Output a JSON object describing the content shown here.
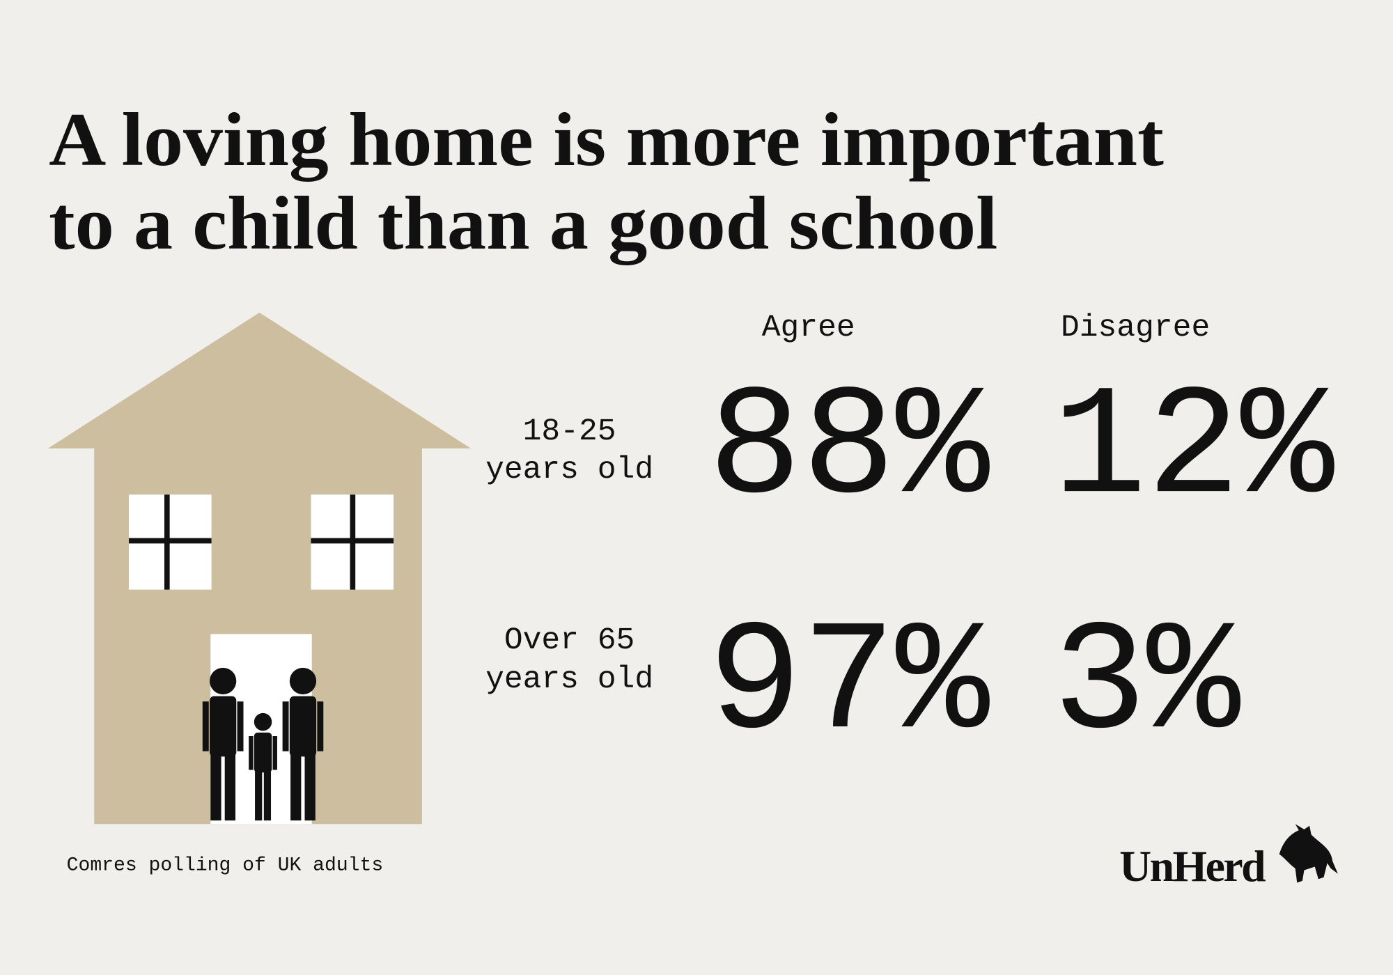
{
  "title": {
    "lines": [
      "A loving home is more important",
      "to a child than a good school"
    ]
  },
  "columns": [
    "Agree",
    "Disagree"
  ],
  "rows": [
    {
      "label": [
        "18-25",
        "years old"
      ],
      "values": [
        "88%",
        "12%"
      ]
    },
    {
      "label": [
        "Over 65",
        "years old"
      ],
      "values": [
        "97%",
        "3%"
      ]
    }
  ],
  "footer": {
    "source": "Comres polling of UK adults",
    "brand": "UnHerd"
  }
}
